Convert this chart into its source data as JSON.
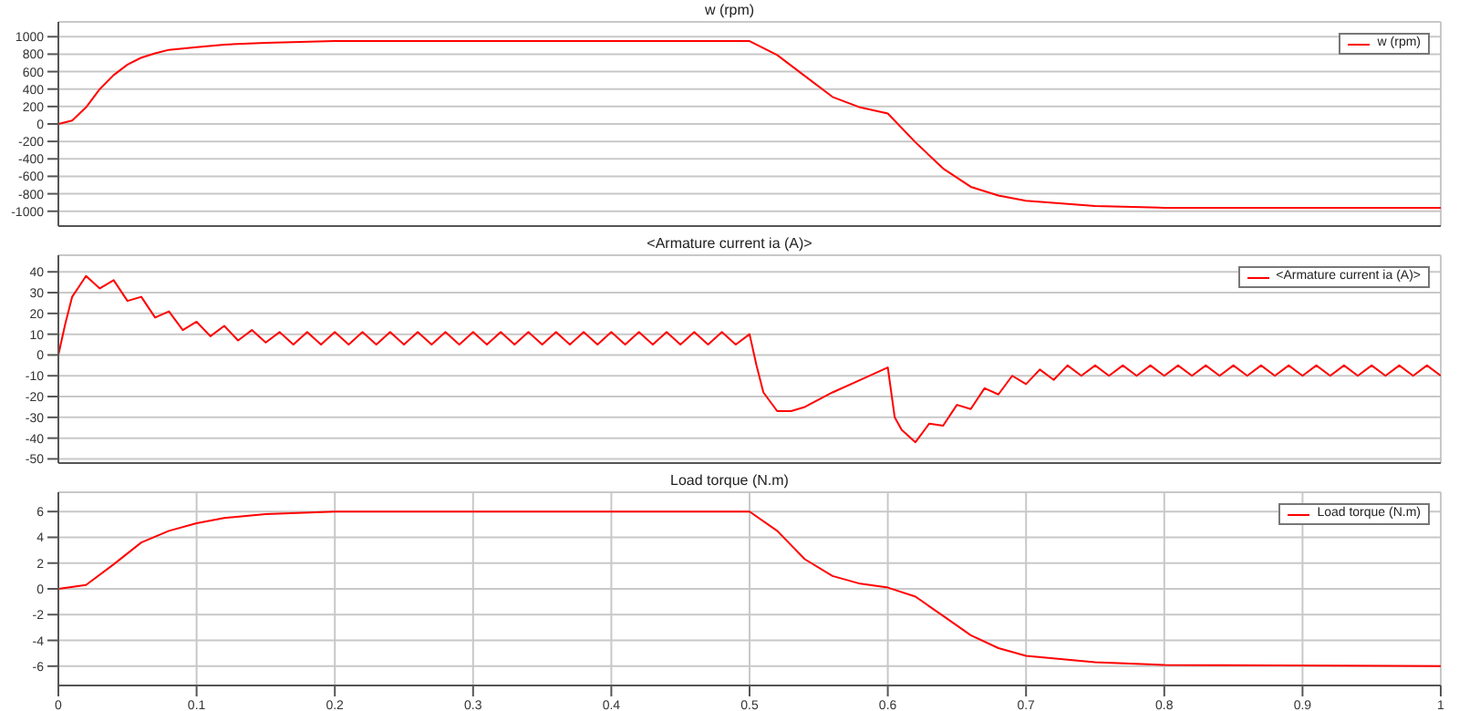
{
  "chart_data": [
    {
      "type": "line",
      "title": "w (rpm)",
      "x": [
        0,
        0.01,
        0.02,
        0.03,
        0.04,
        0.05,
        0.06,
        0.07,
        0.08,
        0.1,
        0.12,
        0.15,
        0.2,
        0.5,
        0.52,
        0.54,
        0.56,
        0.58,
        0.6,
        0.62,
        0.64,
        0.66,
        0.68,
        0.7,
        0.75,
        0.8,
        1
      ],
      "series": [
        {
          "name": "w (rpm)",
          "color": "#ff0000",
          "values": [
            0,
            40,
            190,
            400,
            560,
            680,
            760,
            810,
            850,
            880,
            910,
            930,
            950,
            950,
            790,
            550,
            310,
            190,
            120,
            -210,
            -510,
            -720,
            -820,
            -880,
            -940,
            -960,
            -960
          ]
        }
      ],
      "xlim": [
        0,
        1
      ],
      "xticks": [
        0,
        0.1,
        0.2,
        0.3,
        0.4,
        0.5,
        0.6,
        0.7,
        0.8,
        0.9,
        1
      ],
      "ylim": [
        -1170,
        1170
      ],
      "yticks": [
        -1000,
        -800,
        -600,
        -400,
        -200,
        0,
        200,
        400,
        600,
        800,
        1000
      ],
      "grid": true,
      "legend": "top right",
      "tick_labels": "y"
    },
    {
      "type": "line",
      "title": "<Armature current ia (A)>",
      "x": [
        0,
        0.005,
        0.01,
        0.015,
        0.02,
        0.03,
        0.04,
        0.05,
        0.06,
        0.07,
        0.08,
        0.09,
        0.1,
        0.11,
        0.12,
        0.13,
        0.14,
        0.15,
        0.16,
        0.17,
        0.18,
        0.19,
        0.2,
        0.21,
        0.22,
        0.23,
        0.24,
        0.25,
        0.26,
        0.27,
        0.28,
        0.29,
        0.3,
        0.31,
        0.32,
        0.33,
        0.34,
        0.35,
        0.36,
        0.37,
        0.38,
        0.39,
        0.4,
        0.41,
        0.42,
        0.43,
        0.44,
        0.45,
        0.46,
        0.47,
        0.48,
        0.49,
        0.5,
        0.505,
        0.51,
        0.52,
        0.53,
        0.54,
        0.56,
        0.58,
        0.6,
        0.605,
        0.61,
        0.62,
        0.63,
        0.64,
        0.65,
        0.66,
        0.67,
        0.68,
        0.69,
        0.7,
        0.71,
        0.72,
        0.73,
        0.74,
        0.75,
        0.76,
        0.77,
        0.78,
        0.79,
        0.8,
        0.81,
        0.82,
        0.83,
        0.84,
        0.85,
        0.86,
        0.87,
        0.88,
        0.89,
        0.9,
        0.91,
        0.92,
        0.93,
        0.94,
        0.95,
        0.96,
        0.97,
        0.98,
        0.99,
        1
      ],
      "series": [
        {
          "name": "<Armature current ia (A)>",
          "color": "#ff0000",
          "values": [
            0,
            15,
            28,
            33,
            38,
            32,
            36,
            26,
            28,
            18,
            21,
            12,
            16,
            9,
            14,
            7,
            12,
            6,
            11,
            5,
            11,
            5,
            11,
            5,
            11,
            5,
            11,
            5,
            11,
            5,
            11,
            5,
            11,
            5,
            11,
            5,
            11,
            5,
            11,
            5,
            11,
            5,
            11,
            5,
            11,
            5,
            11,
            5,
            11,
            5,
            11,
            5,
            10,
            -5,
            -18,
            -27,
            -27,
            -25,
            -18,
            -12,
            -6,
            -30,
            -36,
            -42,
            -33,
            -34,
            -24,
            -26,
            -16,
            -19,
            -10,
            -14,
            -7,
            -12,
            -5,
            -10,
            -5,
            -10,
            -5,
            -10,
            -5,
            -10,
            -5,
            -10,
            -5,
            -10,
            -5,
            -10,
            -5,
            -10,
            -5,
            -10,
            -5,
            -10,
            -5,
            -10,
            -5,
            -10,
            -5,
            -10,
            -5,
            -10
          ]
        }
      ],
      "xlim": [
        0,
        1
      ],
      "xticks": [
        0,
        0.1,
        0.2,
        0.3,
        0.4,
        0.5,
        0.6,
        0.7,
        0.8,
        0.9,
        1
      ],
      "ylim": [
        -52,
        48
      ],
      "yticks": [
        -50,
        -40,
        -30,
        -20,
        -10,
        0,
        10,
        20,
        30,
        40
      ],
      "grid": true,
      "legend": "top right",
      "tick_labels": "y"
    },
    {
      "type": "line",
      "title": "Load torque (N.m)",
      "x": [
        0,
        0.02,
        0.04,
        0.06,
        0.08,
        0.1,
        0.12,
        0.15,
        0.2,
        0.5,
        0.52,
        0.54,
        0.56,
        0.58,
        0.6,
        0.62,
        0.64,
        0.66,
        0.68,
        0.7,
        0.75,
        0.8,
        1
      ],
      "series": [
        {
          "name": "Load torque (N.m)",
          "color": "#ff0000",
          "values": [
            0,
            0.3,
            1.9,
            3.6,
            4.5,
            5.1,
            5.5,
            5.8,
            6,
            6,
            4.5,
            2.3,
            1,
            0.4,
            0.1,
            -0.6,
            -2.1,
            -3.6,
            -4.6,
            -5.2,
            -5.7,
            -5.9,
            -6
          ]
        }
      ],
      "xlim": [
        0,
        1
      ],
      "xticks": [
        0,
        0.1,
        0.2,
        0.3,
        0.4,
        0.5,
        0.6,
        0.7,
        0.8,
        0.9,
        1
      ],
      "ylim": [
        -7.5,
        7.5
      ],
      "yticks": [
        -6,
        -4,
        -2,
        0,
        2,
        4,
        6
      ],
      "grid": true,
      "legend": "top right"
    }
  ]
}
